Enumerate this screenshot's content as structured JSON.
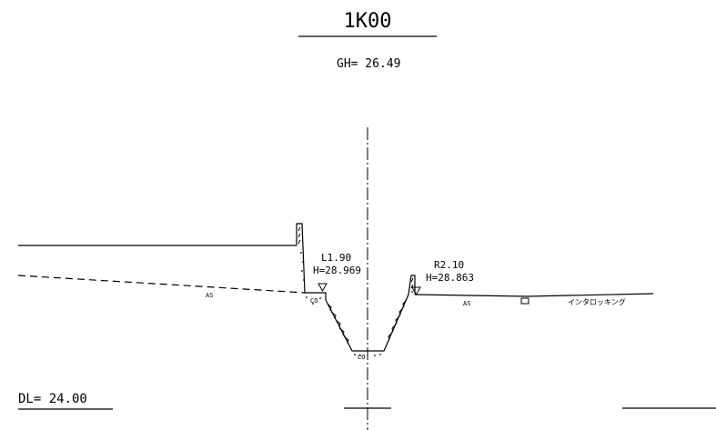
{
  "section": {
    "station": "1K00",
    "ground_height": "GH= 26.49",
    "datum_level": "DL= 24.00"
  },
  "left_point": {
    "offset": "L1.90",
    "height": "H=28.969"
  },
  "right_point": {
    "offset": "R2.10",
    "height": "H=28.863"
  },
  "materials": {
    "asphalt_left": "AS",
    "asphalt_right": "AS",
    "concrete_side": "CO",
    "concrete_bottom": "CO",
    "interlocking": "インタロッキング"
  }
}
